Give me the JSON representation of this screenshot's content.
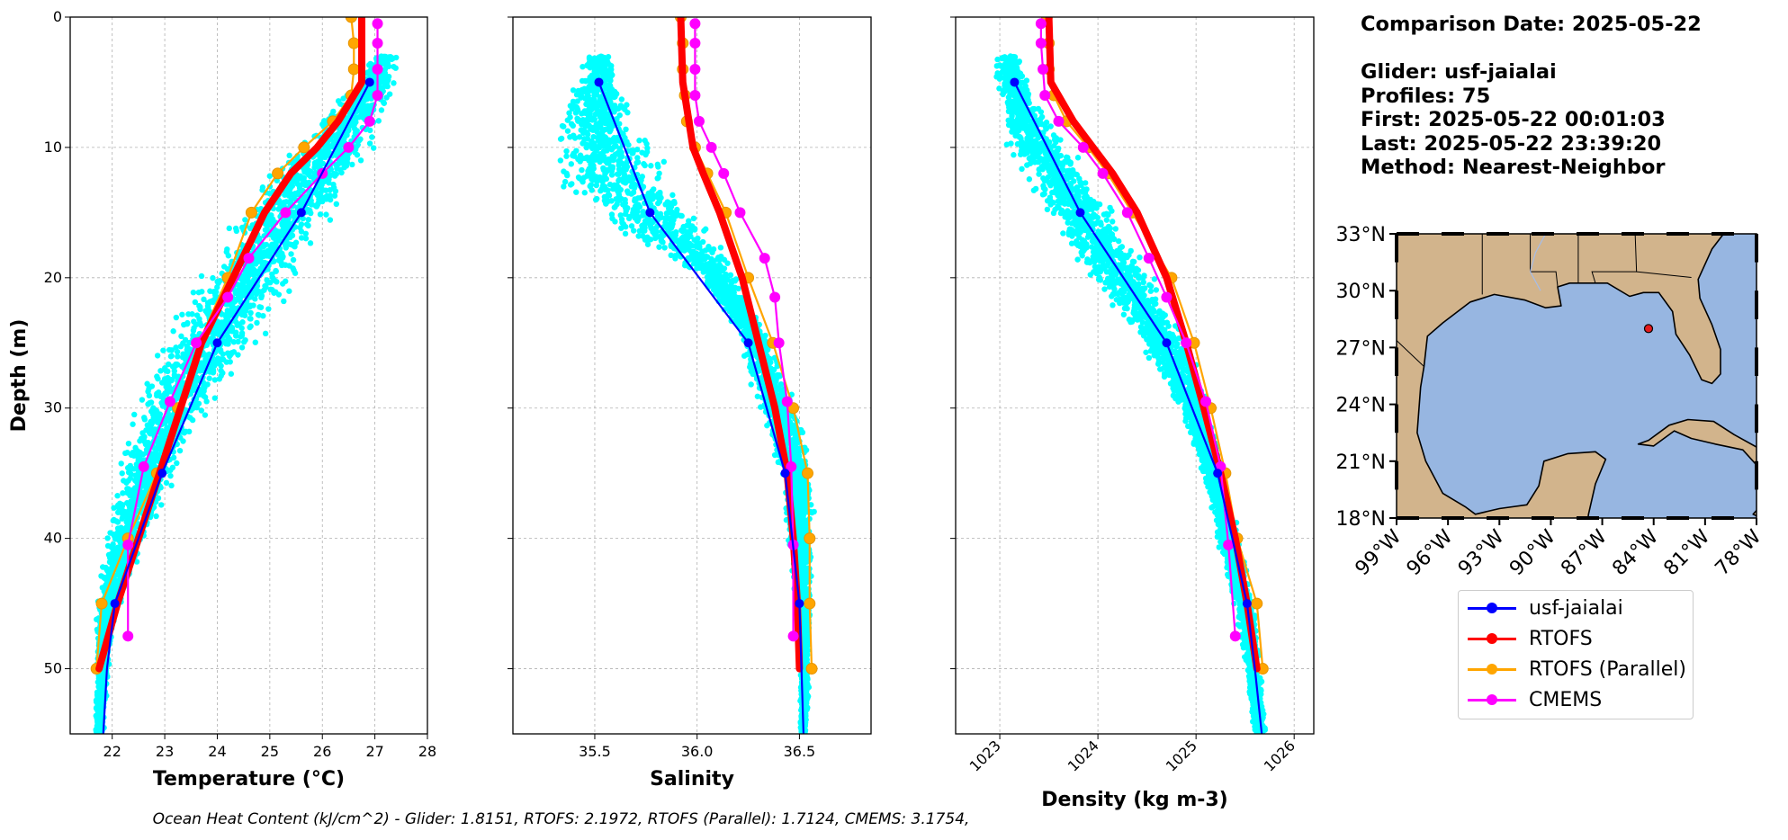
{
  "info": {
    "comparison_date": "Comparison Date: 2025-05-22",
    "glider": "Glider: usf-jaialai",
    "profiles": "Profiles: 75",
    "first": "First: 2025-05-22 00:01:03",
    "last": "Last: 2025-05-22 23:39:20",
    "method": "Method: Nearest-Neighbor"
  },
  "caption": "Ocean Heat Content (kJ/cm^2) - Glider: 1.8151,  RTOFS: 2.1972,  RTOFS (Parallel): 1.7124,  CMEMS: 3.1754,",
  "legend": [
    {
      "label": "usf-jaialai",
      "color": "#0000ff"
    },
    {
      "label": "RTOFS",
      "color": "#ff0000"
    },
    {
      "label": "RTOFS (Parallel)",
      "color": "#ffa500"
    },
    {
      "label": "CMEMS",
      "color": "#ff00ff"
    }
  ],
  "colors": {
    "glider": "#0000ff",
    "rtofs": "#ff0000",
    "rtofs_parallel": "#ffa500",
    "cmems": "#ff00ff",
    "scatter": "#00ffff",
    "land": "#d2b48c",
    "ocean": "#97b6e1"
  },
  "chart_data": [
    {
      "type": "line",
      "xlabel": "Temperature (°C)",
      "ylabel": "Depth (m)",
      "xlim": [
        21.2,
        28
      ],
      "ylim": [
        55,
        0
      ],
      "xticks": [
        22,
        23,
        24,
        25,
        26,
        27,
        28
      ],
      "yticks": [
        0,
        10,
        20,
        30,
        40,
        50
      ],
      "grid": true,
      "glider_scatter_envelope": [
        [
          3,
          26.9,
          27.5
        ],
        [
          5,
          26.6,
          27.4
        ],
        [
          8,
          25.8,
          27.2
        ],
        [
          10,
          25.4,
          27.0
        ],
        [
          12,
          24.9,
          26.8
        ],
        [
          15,
          24.3,
          26.3
        ],
        [
          18,
          23.8,
          25.9
        ],
        [
          20,
          23.6,
          25.6
        ],
        [
          23,
          23.1,
          25.2
        ],
        [
          25,
          22.9,
          24.9
        ],
        [
          28,
          22.5,
          24.3
        ],
        [
          30,
          22.4,
          23.9
        ],
        [
          33,
          22.2,
          23.5
        ],
        [
          35,
          22.1,
          23.3
        ],
        [
          38,
          21.9,
          23.0
        ],
        [
          40,
          21.8,
          22.7
        ],
        [
          43,
          21.75,
          22.4
        ],
        [
          45,
          21.7,
          22.2
        ],
        [
          48,
          21.7,
          22.0
        ],
        [
          50,
          21.68,
          21.95
        ],
        [
          52,
          21.68,
          21.9
        ],
        [
          55,
          21.65,
          21.85
        ]
      ],
      "series": [
        {
          "name": "usf-jaialai",
          "depth": [
            5,
            15,
            25,
            35,
            45,
            50,
            55
          ],
          "values": [
            26.9,
            25.6,
            24.0,
            22.95,
            22.05,
            21.9,
            21.83
          ],
          "marker_count": 5
        },
        {
          "name": "RTOFS",
          "depth": [
            0,
            5,
            8,
            10,
            12,
            15,
            20,
            25,
            30,
            35,
            40,
            45,
            50
          ],
          "values": [
            26.75,
            26.75,
            26.3,
            25.9,
            25.4,
            24.9,
            24.3,
            23.7,
            23.3,
            22.9,
            22.5,
            22.1,
            21.75
          ],
          "marker_count": 0
        },
        {
          "name": "RTOFS (Parallel)",
          "depth": [
            0,
            2,
            4,
            6,
            8,
            10,
            12,
            15,
            20,
            25,
            30,
            35,
            40,
            45,
            50
          ],
          "values": [
            26.55,
            26.6,
            26.6,
            26.55,
            26.2,
            25.65,
            25.15,
            24.65,
            24.2,
            23.65,
            23.25,
            22.85,
            22.3,
            21.8,
            21.7
          ],
          "marker_count": 15
        },
        {
          "name": "CMEMS",
          "depth": [
            0.5,
            2,
            4,
            6,
            8,
            10,
            12,
            15,
            18.5,
            21.5,
            25,
            29.5,
            34.5,
            40.5,
            47.5
          ],
          "values": [
            27.05,
            27.05,
            27.05,
            27.05,
            26.9,
            26.5,
            26.0,
            25.3,
            24.6,
            24.2,
            23.6,
            23.1,
            22.6,
            22.3,
            22.3
          ],
          "marker_count": 15
        }
      ]
    },
    {
      "type": "line",
      "xlabel": "Salinity",
      "xlim": [
        35.1,
        36.85
      ],
      "ylim": [
        55,
        0
      ],
      "xticks": [
        35.5,
        36.0,
        36.5
      ],
      "yticks": [
        0,
        10,
        20,
        30,
        40,
        50
      ],
      "grid": true,
      "glider_scatter_envelope": [
        [
          3,
          35.45,
          35.6
        ],
        [
          5,
          35.4,
          35.65
        ],
        [
          8,
          35.3,
          35.7
        ],
        [
          10,
          35.27,
          35.8
        ],
        [
          12,
          35.25,
          35.9
        ],
        [
          14,
          35.35,
          36.0
        ],
        [
          16,
          35.55,
          36.1
        ],
        [
          18,
          35.8,
          36.15
        ],
        [
          20,
          36.0,
          36.2
        ],
        [
          23,
          36.15,
          36.3
        ],
        [
          25,
          36.2,
          36.38
        ],
        [
          28,
          36.25,
          36.45
        ],
        [
          30,
          36.3,
          36.5
        ],
        [
          33,
          36.35,
          36.55
        ],
        [
          35,
          36.4,
          36.57
        ],
        [
          38,
          36.42,
          36.58
        ],
        [
          40,
          36.44,
          36.57
        ],
        [
          43,
          36.46,
          36.57
        ],
        [
          45,
          36.48,
          36.56
        ],
        [
          48,
          36.49,
          36.55
        ],
        [
          50,
          36.5,
          36.55
        ],
        [
          55,
          36.5,
          36.54
        ]
      ],
      "series": [
        {
          "name": "usf-jaialai",
          "depth": [
            5,
            15,
            25,
            35,
            45,
            50,
            55
          ],
          "values": [
            35.52,
            35.77,
            36.25,
            36.43,
            36.5,
            36.51,
            36.52
          ],
          "marker_count": 5
        },
        {
          "name": "RTOFS",
          "depth": [
            0,
            5,
            8,
            10,
            12,
            15,
            20,
            25,
            30,
            35,
            40,
            45,
            50
          ],
          "values": [
            35.92,
            35.93,
            35.96,
            35.98,
            36.03,
            36.11,
            36.22,
            36.3,
            36.38,
            36.44,
            36.47,
            36.49,
            36.5
          ],
          "marker_count": 0
        },
        {
          "name": "RTOFS (Parallel)",
          "depth": [
            0,
            2,
            4,
            6,
            8,
            10,
            12,
            15,
            20,
            25,
            30,
            35,
            40,
            45,
            50
          ],
          "values": [
            35.92,
            35.93,
            35.93,
            35.94,
            35.95,
            35.99,
            36.05,
            36.14,
            36.25,
            36.37,
            36.47,
            36.54,
            36.55,
            36.55,
            36.56
          ],
          "marker_count": 15
        },
        {
          "name": "CMEMS",
          "depth": [
            0.5,
            2,
            4,
            6,
            8,
            10,
            12,
            15,
            18.5,
            21.5,
            25,
            29.5,
            34.5,
            40.5,
            47.5
          ],
          "values": [
            35.99,
            35.99,
            35.99,
            35.99,
            36.01,
            36.07,
            36.13,
            36.21,
            36.33,
            36.38,
            36.4,
            36.44,
            36.46,
            36.47,
            36.47
          ],
          "marker_count": 15
        }
      ]
    },
    {
      "type": "line",
      "xlabel": "Density (kg m-3)",
      "xlim": [
        1022.55,
        1026.2
      ],
      "ylim": [
        55,
        0
      ],
      "xticks": [
        1023,
        1024,
        1025,
        1026
      ],
      "yticks": [
        0,
        10,
        20,
        30,
        40,
        50
      ],
      "grid": true,
      "glider_scatter_envelope": [
        [
          3,
          1022.95,
          1023.2
        ],
        [
          5,
          1022.95,
          1023.3
        ],
        [
          8,
          1023.0,
          1023.55
        ],
        [
          10,
          1023.05,
          1023.75
        ],
        [
          12,
          1023.2,
          1023.95
        ],
        [
          15,
          1023.45,
          1024.2
        ],
        [
          18,
          1023.7,
          1024.45
        ],
        [
          20,
          1023.9,
          1024.6
        ],
        [
          23,
          1024.2,
          1024.8
        ],
        [
          25,
          1024.4,
          1024.95
        ],
        [
          28,
          1024.65,
          1025.05
        ],
        [
          30,
          1024.8,
          1025.15
        ],
        [
          33,
          1024.95,
          1025.25
        ],
        [
          35,
          1025.05,
          1025.3
        ],
        [
          38,
          1025.15,
          1025.4
        ],
        [
          40,
          1025.2,
          1025.45
        ],
        [
          43,
          1025.3,
          1025.55
        ],
        [
          45,
          1025.38,
          1025.6
        ],
        [
          48,
          1025.45,
          1025.65
        ],
        [
          50,
          1025.5,
          1025.67
        ],
        [
          55,
          1025.58,
          1025.72
        ]
      ],
      "series": [
        {
          "name": "usf-jaialai",
          "depth": [
            5,
            15,
            25,
            35,
            45,
            50,
            55
          ],
          "values": [
            1023.15,
            1023.82,
            1024.7,
            1025.22,
            1025.52,
            1025.6,
            1025.67
          ],
          "marker_count": 5
        },
        {
          "name": "RTOFS",
          "depth": [
            0,
            5,
            8,
            10,
            12,
            15,
            20,
            25,
            30,
            35,
            40,
            45,
            50
          ],
          "values": [
            1023.5,
            1023.52,
            1023.75,
            1023.95,
            1024.15,
            1024.4,
            1024.7,
            1024.9,
            1025.08,
            1025.25,
            1025.4,
            1025.52,
            1025.62
          ],
          "marker_count": 0
        },
        {
          "name": "RTOFS (Parallel)",
          "depth": [
            0,
            2,
            4,
            6,
            8,
            10,
            12,
            15,
            20,
            25,
            30,
            35,
            40,
            45,
            50
          ],
          "values": [
            1023.48,
            1023.5,
            1023.5,
            1023.55,
            1023.68,
            1023.9,
            1024.1,
            1024.35,
            1024.75,
            1024.98,
            1025.15,
            1025.3,
            1025.42,
            1025.62,
            1025.68
          ],
          "marker_count": 15
        },
        {
          "name": "CMEMS",
          "depth": [
            0.5,
            2,
            4,
            6,
            8,
            10,
            12,
            15,
            18.5,
            21.5,
            25,
            29.5,
            34.5,
            40.5,
            47.5
          ],
          "values": [
            1023.42,
            1023.42,
            1023.44,
            1023.46,
            1023.6,
            1023.85,
            1024.05,
            1024.3,
            1024.52,
            1024.7,
            1024.9,
            1025.1,
            1025.25,
            1025.33,
            1025.4
          ],
          "marker_count": 15
        }
      ]
    },
    {
      "type": "map",
      "lat_ticks": [
        "33°N",
        "30°N",
        "27°N",
        "24°N",
        "21°N",
        "18°N"
      ],
      "lon_ticks": [
        "99°W",
        "96°W",
        "93°W",
        "90°W",
        "87°W",
        "84°W",
        "81°W",
        "78°W"
      ],
      "lat_range": [
        18,
        33
      ],
      "lon_range": [
        -99,
        -78
      ],
      "glider_position": {
        "lon": -84.3,
        "lat": 28.0
      }
    }
  ]
}
